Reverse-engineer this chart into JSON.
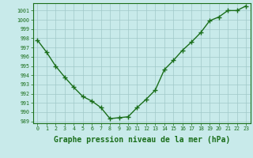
{
  "x": [
    0,
    1,
    2,
    3,
    4,
    5,
    6,
    7,
    8,
    9,
    10,
    11,
    12,
    13,
    14,
    15,
    16,
    17,
    18,
    19,
    20,
    21,
    22,
    23
  ],
  "y": [
    997.8,
    996.5,
    995.0,
    993.8,
    992.7,
    991.7,
    991.2,
    990.5,
    989.3,
    989.4,
    989.5,
    990.5,
    991.4,
    992.4,
    994.6,
    995.6,
    996.7,
    997.6,
    998.6,
    999.9,
    1000.3,
    1001.0,
    1001.0,
    1001.5
  ],
  "line_color": "#1a6e1a",
  "marker": "+",
  "bg_color": "#c8eaea",
  "grid_color": "#a0c8c8",
  "axis_color": "#1a6e1a",
  "xlabel": "Graphe pression niveau de la mer (hPa)",
  "ylim": [
    988.8,
    1001.8
  ],
  "yticks": [
    989,
    990,
    991,
    992,
    993,
    994,
    995,
    996,
    997,
    998,
    999,
    1000,
    1001
  ],
  "xlim": [
    -0.5,
    23.5
  ],
  "xticks": [
    0,
    1,
    2,
    3,
    4,
    5,
    6,
    7,
    8,
    9,
    10,
    11,
    12,
    13,
    14,
    15,
    16,
    17,
    18,
    19,
    20,
    21,
    22,
    23
  ],
  "tick_fontsize": 4.8,
  "label_fontsize": 7.0,
  "marker_size": 4,
  "linewidth": 1.0
}
